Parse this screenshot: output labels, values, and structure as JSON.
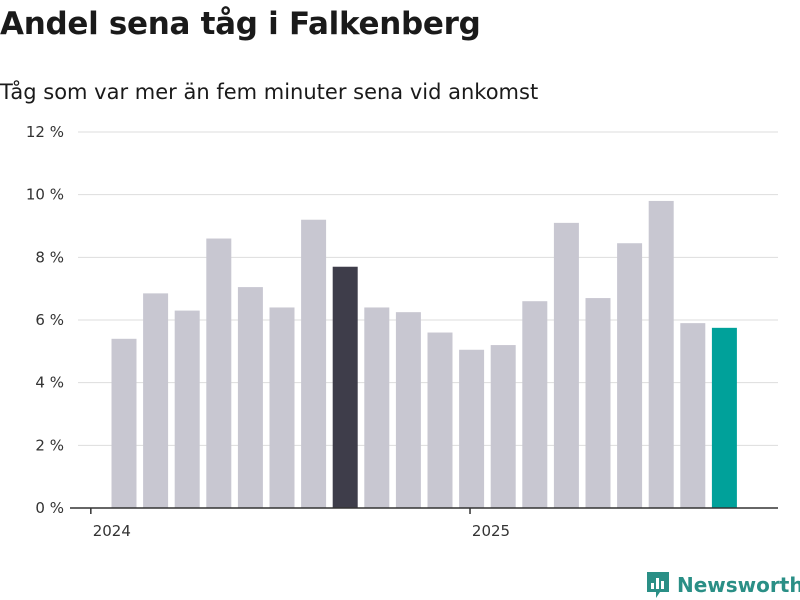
{
  "chart_data": {
    "type": "bar",
    "title": "Andel sena tåg i Falkenberg",
    "subtitle": "Tåg som var mer än fem minuter sena vid ankomst",
    "xlabel": "",
    "ylabel": "",
    "ylim": [
      0,
      12
    ],
    "yticks": [
      0,
      2,
      4,
      6,
      8,
      10,
      12
    ],
    "ytick_suffix": " %",
    "grid": true,
    "xtick_labels": [
      {
        "label": "2024",
        "x": 0
      },
      {
        "label": "2025",
        "x": 12
      }
    ],
    "categories": [
      "2024-01",
      "2024-02",
      "2024-03",
      "2024-04",
      "2024-05",
      "2024-06",
      "2024-07",
      "2024-08",
      "2024-09",
      "2024-10",
      "2024-11",
      "2024-12",
      "2025-01",
      "2025-02",
      "2025-03",
      "2025-04",
      "2025-05",
      "2025-06",
      "2025-07",
      "2025-08"
    ],
    "values": [
      5.4,
      6.85,
      6.3,
      8.6,
      7.05,
      6.4,
      9.2,
      7.7,
      6.4,
      6.25,
      5.6,
      5.05,
      5.2,
      6.6,
      9.1,
      6.7,
      8.45,
      9.8,
      5.9,
      5.75
    ],
    "highlight": {
      "2024-08": "dark",
      "2025-08": "accent"
    }
  },
  "colors": {
    "bar": "#c8c7d1",
    "dark": "#3e3d4a",
    "accent": "#00a19a",
    "grid": "#dddddd",
    "axis": "#333333",
    "brand": "#2a8f86"
  },
  "brand": {
    "name": "Newsworthy",
    "icon": "newsworthy-logo-icon"
  }
}
